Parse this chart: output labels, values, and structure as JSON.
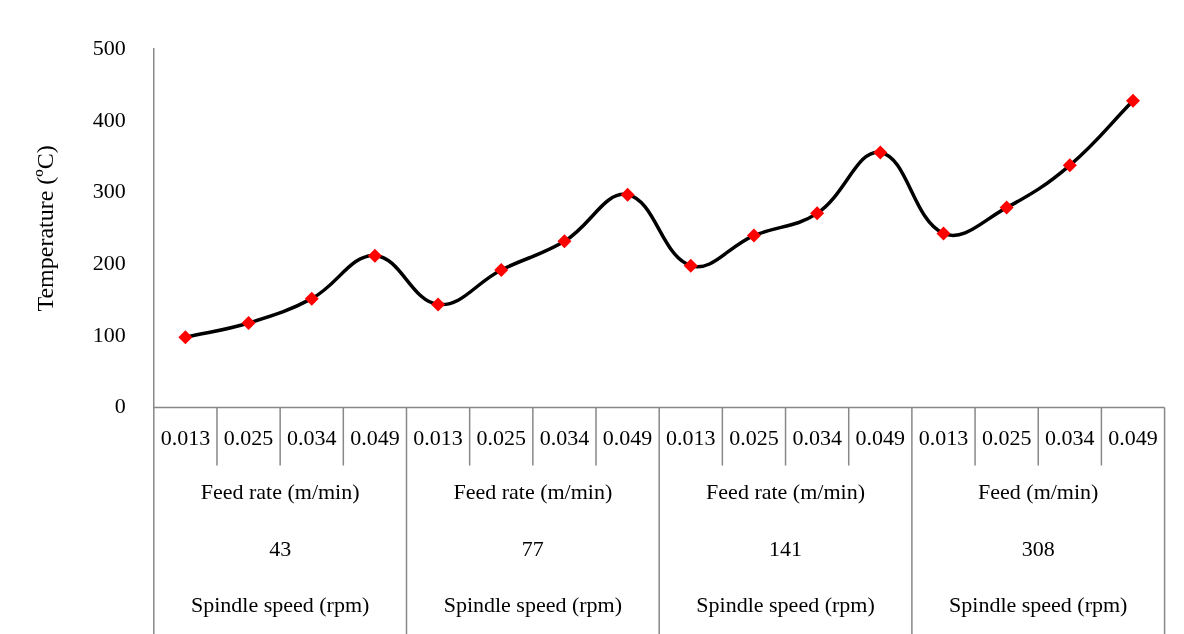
{
  "chart_data": {
    "type": "line",
    "ylabel": "Temperature (ºC)",
    "categories": [
      "0.013",
      "0.025",
      "0.034",
      "0.049",
      "0.013",
      "0.025",
      "0.034",
      "0.049",
      "0.013",
      "0.025",
      "0.034",
      "0.049",
      "0.013",
      "0.025",
      "0.034",
      "0.049"
    ],
    "series": [
      {
        "color": "#000000",
        "colors": [
          "#ff0000",
          "#ff0000",
          "#ff0000",
          "#ff0000",
          "#ff0000",
          "#ff0000",
          "#ff0000",
          "#ff0000",
          "#ff0000",
          "#ff0000",
          "#ff0000",
          "#ff0000",
          "#ff0000",
          "#ff0000",
          "#ff0000",
          "#ff0000"
        ],
        "values": [
          98,
          118,
          152,
          212,
          144,
          192,
          232,
          297,
          198,
          240,
          271,
          356,
          243,
          279,
          338,
          428
        ]
      }
    ],
    "marker": "diamond",
    "ylim": [
      0,
      500
    ],
    "yticks": [
      0,
      100,
      200,
      300,
      400,
      500
    ],
    "grid": false,
    "legend": false,
    "annotations": [
      "Feed rate (m/min)",
      "Feed rate (m/min)",
      "Feed rate (m/min)",
      "Feed (m/min)",
      "43",
      "77",
      "141",
      "308",
      "Spindle speed (rpm)",
      "Spindle speed (rpm)",
      "Spindle speed (rpm)",
      "Spindle speed (rpm)"
    ]
  }
}
